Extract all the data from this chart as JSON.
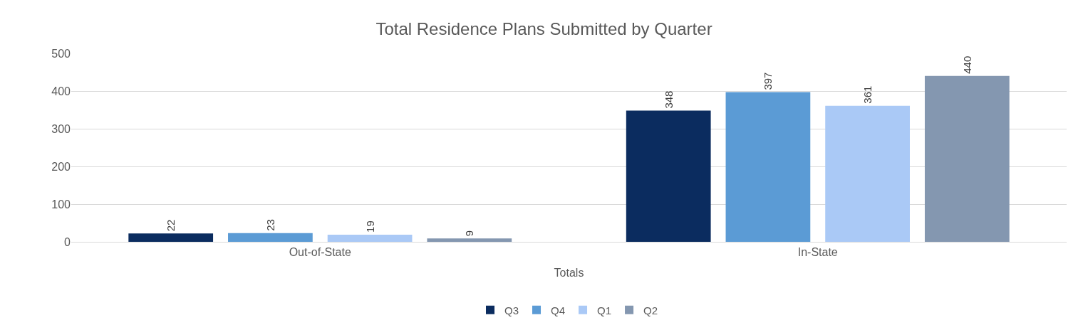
{
  "chart_data": {
    "type": "bar",
    "title": "Total Residence Plans Submitted by Quarter",
    "xlabel": "Totals",
    "categories": [
      "Out-of-State",
      "In-State"
    ],
    "series": [
      {
        "name": "Q3",
        "color": "#0b2c5f",
        "values": [
          22,
          348
        ]
      },
      {
        "name": "Q4",
        "color": "#5b9bd5",
        "values": [
          23,
          397
        ]
      },
      {
        "name": "Q1",
        "color": "#aac9f6",
        "values": [
          19,
          361
        ]
      },
      {
        "name": "Q2",
        "color": "#8497b0",
        "values": [
          9,
          440
        ]
      }
    ],
    "ylim": [
      0,
      500
    ],
    "yticks": [
      0,
      100,
      200,
      300,
      400,
      500
    ],
    "grid": "y",
    "legend": "bottom",
    "data_labels": true
  }
}
